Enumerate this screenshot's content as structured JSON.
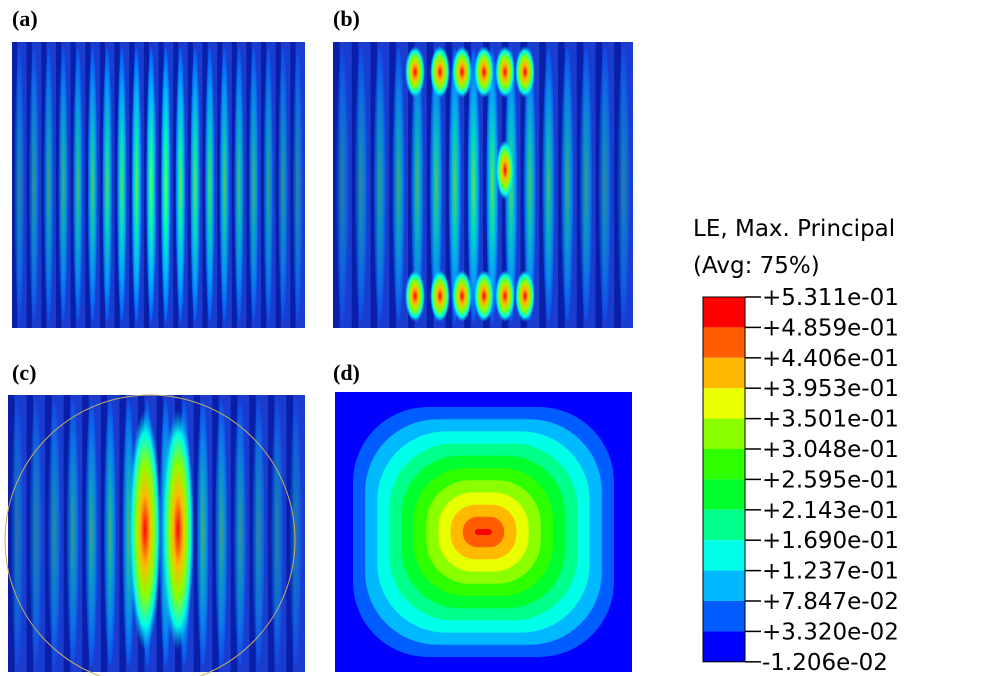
{
  "panels": [
    {
      "label": "(a)"
    },
    {
      "label": "(b)"
    },
    {
      "label": "(c)"
    },
    {
      "label": "(d)"
    }
  ],
  "legend": {
    "title": [
      "LE, Max. Principal",
      "(Avg: 75%)"
    ],
    "labels": [
      "+5.311e-01",
      "+4.859e-01",
      "+4.406e-01",
      "+3.953e-01",
      "+3.501e-01",
      "+3.048e-01",
      "+2.595e-01",
      "+2.143e-01",
      "+1.690e-01",
      "+1.237e-01",
      "+7.847e-02",
      "+3.320e-02",
      "-1.206e-02"
    ],
    "colors": [
      "#ff0000",
      "#ff5d00",
      "#ffb900",
      "#e8ff00",
      "#8bff00",
      "#2eff00",
      "#00ff2e",
      "#00ff8b",
      "#00ffe8",
      "#00b9ff",
      "#005dff",
      "#0000ff"
    ]
  }
}
